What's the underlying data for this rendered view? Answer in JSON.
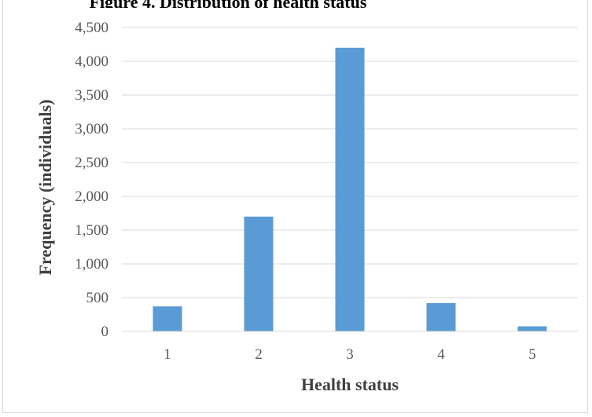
{
  "chart_data": {
    "type": "bar",
    "title": "Figure 4. Distribution of health status",
    "xlabel": "Health status",
    "ylabel": "Frequency (individuals)",
    "categories": [
      "1",
      "2",
      "3",
      "4",
      "5"
    ],
    "values": [
      370,
      1700,
      4200,
      420,
      75
    ],
    "ylim": [
      0,
      4500
    ],
    "yticks": [
      "0",
      "500",
      "1,000",
      "1,500",
      "2,000",
      "2,500",
      "3,000",
      "3,500",
      "4,000",
      "4,500"
    ],
    "grid": true,
    "legend": "none",
    "bar_color": "#5b9bd5",
    "grid_color": "#d9d9d9"
  }
}
